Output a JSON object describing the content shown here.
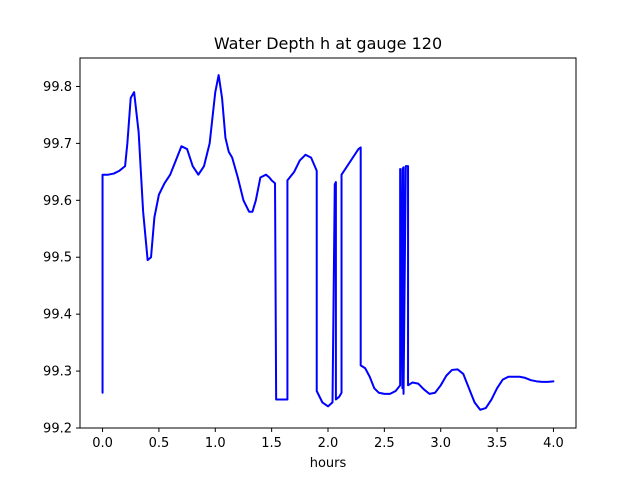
{
  "chart_data": {
    "type": "line",
    "title": "Water Depth h at gauge 120",
    "xlabel": "hours",
    "ylabel": "",
    "xlim": [
      -0.2,
      4.2
    ],
    "ylim": [
      99.2,
      99.85
    ],
    "xticks": [
      0.0,
      0.5,
      1.0,
      1.5,
      2.0,
      2.5,
      3.0,
      3.5,
      4.0
    ],
    "xtick_labels": [
      "0.0",
      "0.5",
      "1.0",
      "1.5",
      "2.0",
      "2.5",
      "3.0",
      "3.5",
      "4.0"
    ],
    "yticks": [
      99.2,
      99.3,
      99.4,
      99.5,
      99.6,
      99.7,
      99.8
    ],
    "ytick_labels": [
      "99.2",
      "99.3",
      "99.4",
      "99.5",
      "99.6",
      "99.7",
      "99.8"
    ],
    "grid": false,
    "series": [
      {
        "color": "#0000ff",
        "x": [
          0.0,
          0.0,
          0.05,
          0.1,
          0.15,
          0.2,
          0.22,
          0.25,
          0.28,
          0.32,
          0.36,
          0.4,
          0.43,
          0.46,
          0.5,
          0.55,
          0.6,
          0.65,
          0.7,
          0.75,
          0.8,
          0.85,
          0.9,
          0.95,
          1.0,
          1.03,
          1.06,
          1.09,
          1.12,
          1.15,
          1.2,
          1.25,
          1.3,
          1.33,
          1.36,
          1.4,
          1.45,
          1.48,
          1.5,
          1.53,
          1.54,
          1.6,
          1.64,
          1.64,
          1.7,
          1.75,
          1.8,
          1.85,
          1.9,
          1.9,
          1.95,
          2.0,
          2.04,
          2.06,
          2.06,
          2.07,
          2.07,
          2.1,
          2.12,
          2.12,
          2.17,
          2.22,
          2.27,
          2.29,
          2.29,
          2.33,
          2.37,
          2.41,
          2.45,
          2.5,
          2.55,
          2.6,
          2.64,
          2.64,
          2.66,
          2.66,
          2.67,
          2.67,
          2.69,
          2.69,
          2.71,
          2.71,
          2.75,
          2.8,
          2.85,
          2.9,
          2.95,
          3.0,
          3.05,
          3.1,
          3.15,
          3.2,
          3.25,
          3.3,
          3.35,
          3.4,
          3.45,
          3.5,
          3.55,
          3.6,
          3.65,
          3.7,
          3.75,
          3.8,
          3.85,
          3.9,
          3.95,
          4.0
        ],
        "y": [
          99.262,
          99.645,
          99.645,
          99.647,
          99.652,
          99.66,
          99.7,
          99.78,
          99.79,
          99.72,
          99.58,
          99.495,
          99.5,
          99.57,
          99.61,
          99.63,
          99.645,
          99.67,
          99.695,
          99.69,
          99.66,
          99.645,
          99.66,
          99.7,
          99.79,
          99.82,
          99.78,
          99.71,
          99.685,
          99.675,
          99.64,
          99.6,
          99.58,
          99.58,
          99.6,
          99.64,
          99.645,
          99.64,
          99.635,
          99.63,
          99.25,
          99.25,
          99.25,
          99.635,
          99.65,
          99.67,
          99.68,
          99.675,
          99.652,
          99.265,
          99.245,
          99.238,
          99.245,
          99.625,
          99.628,
          99.632,
          99.25,
          99.255,
          99.262,
          99.645,
          99.66,
          99.675,
          99.69,
          99.693,
          99.31,
          99.305,
          99.29,
          99.27,
          99.262,
          99.26,
          99.26,
          99.265,
          99.275,
          99.655,
          99.27,
          99.655,
          99.658,
          99.26,
          99.658,
          99.66,
          99.66,
          99.275,
          99.28,
          99.278,
          99.268,
          99.26,
          99.262,
          99.275,
          99.292,
          99.302,
          99.303,
          99.295,
          99.27,
          99.245,
          99.232,
          99.235,
          99.25,
          99.27,
          99.285,
          99.29,
          99.29,
          99.29,
          99.288,
          99.284,
          99.282,
          99.281,
          99.281,
          99.282
        ]
      }
    ]
  }
}
